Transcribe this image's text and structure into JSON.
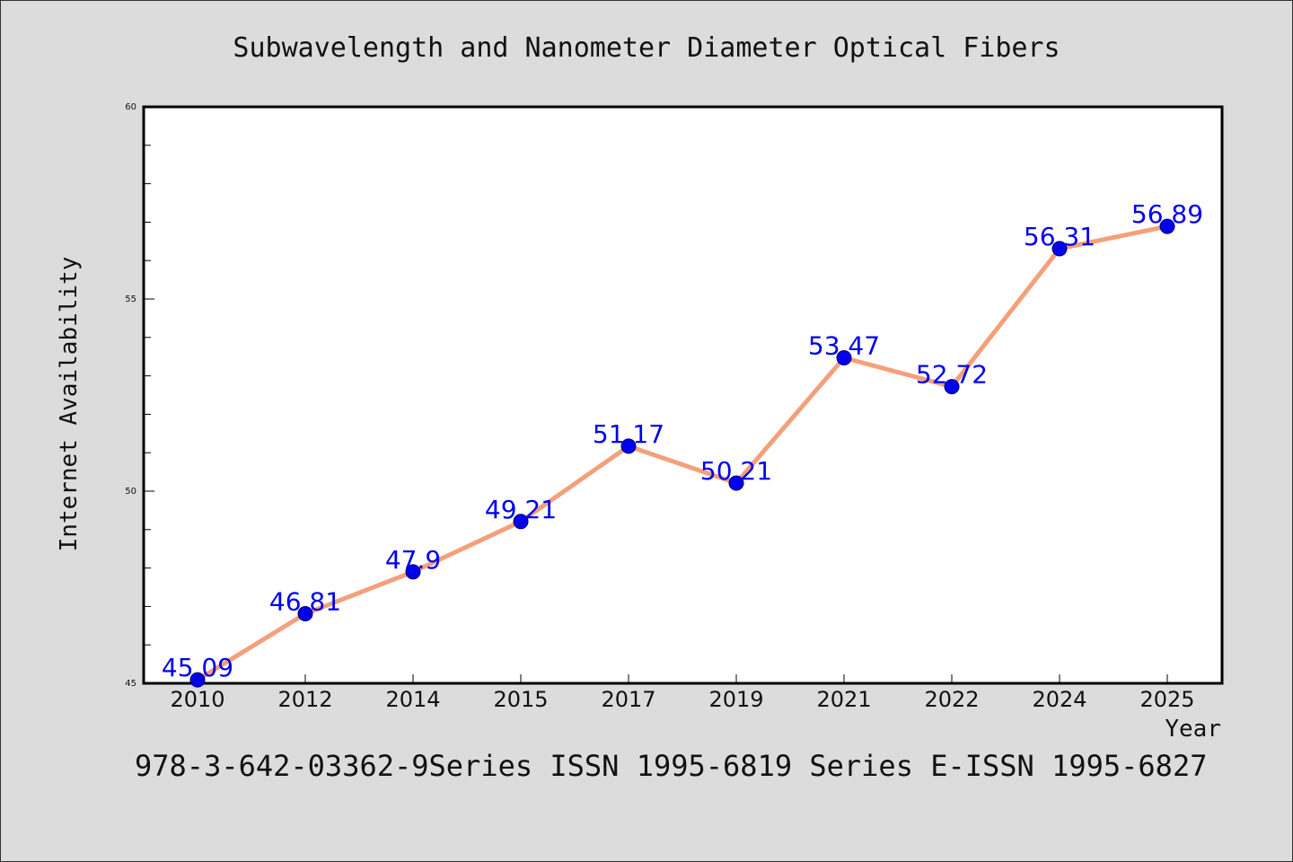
{
  "chart_data": {
    "type": "line",
    "title": "Subwavelength and Nanometer Diameter Optical Fibers",
    "xlabel": "Year",
    "ylabel": "Internet Availability",
    "categories": [
      "2010",
      "2012",
      "2014",
      "2015",
      "2017",
      "2019",
      "2021",
      "2022",
      "2024",
      "2025"
    ],
    "values": [
      45.09,
      46.81,
      47.9,
      49.21,
      51.17,
      50.21,
      53.47,
      52.72,
      56.31,
      56.89
    ],
    "value_labels": [
      "45.09",
      "46.81",
      "47.9",
      "49.21",
      "51.17",
      "50.21",
      "53.47",
      "52.72",
      "56.31",
      "56.89"
    ],
    "ylim": [
      45,
      60
    ],
    "y_major_ticks": [
      "45",
      "50",
      "55",
      "60"
    ],
    "grid": false,
    "line_color": "#f4a07a",
    "marker_color": "#0000ee",
    "label_color": "#0000ee"
  },
  "footer": {
    "text": "978-3-642-03362-9Series ISSN 1995-6819 Series E-ISSN 1995-6827"
  }
}
